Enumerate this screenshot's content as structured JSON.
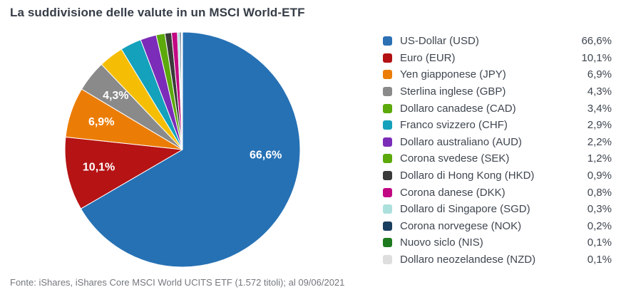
{
  "chart_data": {
    "type": "pie",
    "title": "La suddivisione delle valute in un MSCI World-ETF",
    "source": "Fonte: iShares, iShares Core MSCI World UCITS ETF (1.572 titoli); al 09/06/2021",
    "legend_position": "right",
    "direction": "clockwise",
    "start": "top",
    "labels_shown_on_slices": [
      "66,6%",
      "10,1%",
      "6,9%",
      "4,3%"
    ],
    "items": [
      {
        "label": "US-Dollar (USD)",
        "code": "USD",
        "value": 66.6,
        "value_display": "66,6%",
        "legend_color": "#2B71B4",
        "slice_color": "#2671B4"
      },
      {
        "label": "Euro (EUR)",
        "code": "EUR",
        "value": 10.1,
        "value_display": "10,1%",
        "legend_color": "#B31113",
        "slice_color": "#B51314"
      },
      {
        "label": "Yen giapponese (JPY)",
        "code": "JPY",
        "value": 6.9,
        "value_display": "6,9%",
        "legend_color": "#EB7D07",
        "slice_color": "#EB7D07"
      },
      {
        "label": "Sterlina inglese (GBP)",
        "code": "GBP",
        "value": 4.3,
        "value_display": "4,3%",
        "legend_color": "#8A8A8A",
        "slice_color": "#8A8A8A"
      },
      {
        "label": "Dollaro canadese (CAD)",
        "code": "CAD",
        "value": 3.4,
        "value_display": "3,4%",
        "legend_color": "#5CA90B",
        "slice_color": "#F5BE04"
      },
      {
        "label": "Franco svizzero (CHF)",
        "code": "CHF",
        "value": 2.9,
        "value_display": "2,9%",
        "legend_color": "#13A1BC",
        "slice_color": "#13A1BC"
      },
      {
        "label": "Dollaro australiano (AUD)",
        "code": "AUD",
        "value": 2.2,
        "value_display": "2,2%",
        "legend_color": "#7B2CB8",
        "slice_color": "#7B2CB8"
      },
      {
        "label": "Corona svedese (SEK)",
        "code": "SEK",
        "value": 1.2,
        "value_display": "1,2%",
        "legend_color": "#5CA90B",
        "slice_color": "#5CA90B"
      },
      {
        "label": "Dollaro di Hong Kong (HKD)",
        "code": "HKD",
        "value": 0.9,
        "value_display": "0,9%",
        "legend_color": "#3A3A3A",
        "slice_color": "#3A3A3A"
      },
      {
        "label": "Corona danese (DKK)",
        "code": "DKK",
        "value": 0.8,
        "value_display": "0,8%",
        "legend_color": "#C20983",
        "slice_color": "#C20983"
      },
      {
        "label": "Dollaro di Singapore (SGD)",
        "code": "SGD",
        "value": 0.3,
        "value_display": "0,3%",
        "legend_color": "#ACE0DC",
        "slice_color": "#ACE0DC"
      },
      {
        "label": "Corona norvegese (NOK)",
        "code": "NOK",
        "value": 0.2,
        "value_display": "0,2%",
        "legend_color": "#1A3E5F",
        "slice_color": "#1A3E5F"
      },
      {
        "label": "Nuovo siclo (NIS)",
        "code": "NIS",
        "value": 0.1,
        "value_display": "0,1%",
        "legend_color": "#1E7A1E",
        "slice_color": "#1E7A1E"
      },
      {
        "label": "Dollaro neozelandese (NZD)",
        "code": "NZD",
        "value": 0.1,
        "value_display": "0,1%",
        "legend_color": "#DEDEDE",
        "slice_color": "#DEDEDE"
      }
    ]
  }
}
